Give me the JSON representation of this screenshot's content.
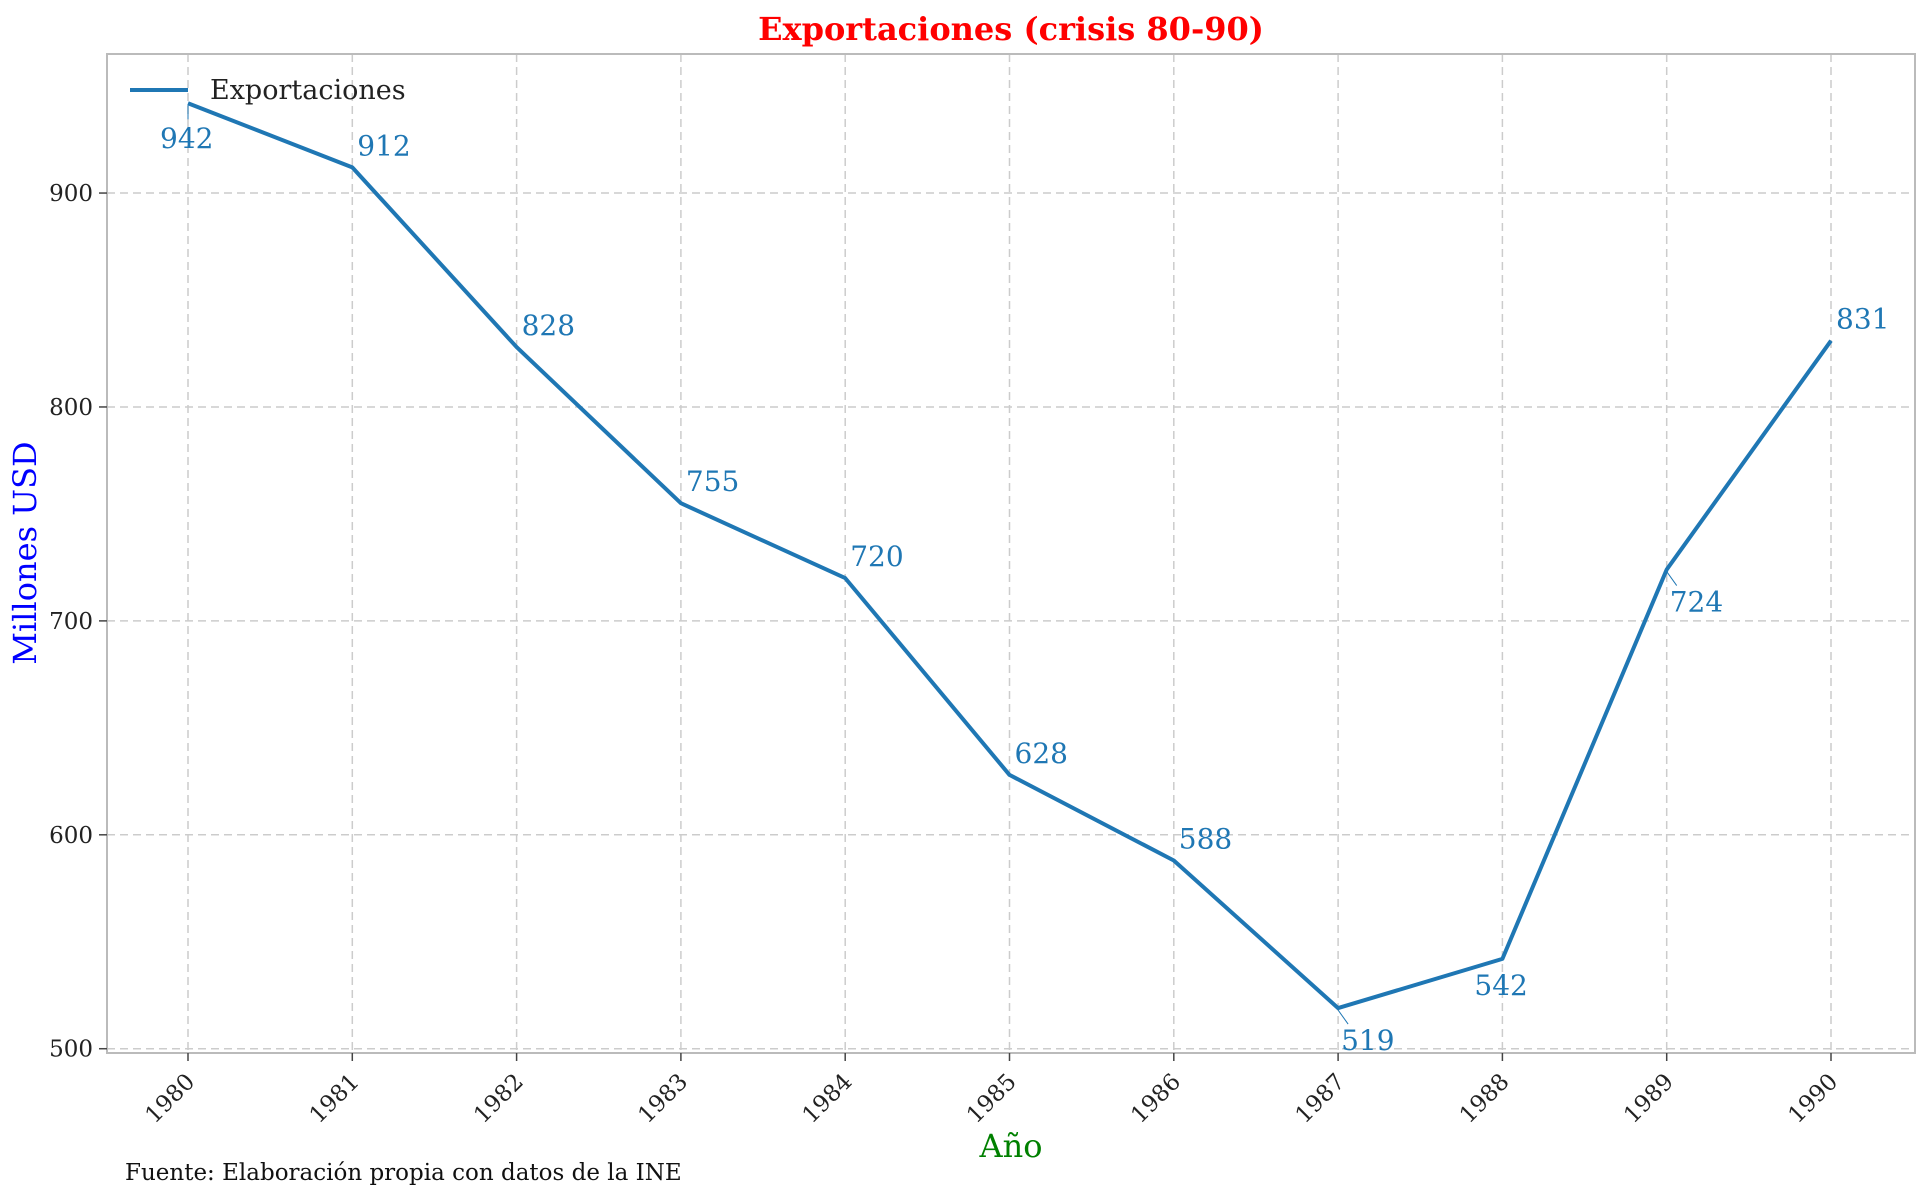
{
  "chart_data": {
    "type": "line",
    "title": "Exportaciones (crisis 80-90)",
    "xlabel": "Año",
    "ylabel": "Millones USD",
    "x": [
      "1980",
      "1981",
      "1982",
      "1983",
      "1984",
      "1985",
      "1986",
      "1987",
      "1988",
      "1989",
      "1990"
    ],
    "series": [
      {
        "name": "Exportaciones",
        "values": [
          942,
          912,
          828,
          755,
          720,
          628,
          588,
          519,
          542,
          724,
          831
        ],
        "data_labels": [
          "942",
          "912",
          "828",
          "755",
          "720",
          "628",
          "588",
          "519",
          "542",
          "724",
          "831"
        ]
      }
    ],
    "ylim": [
      498,
      965
    ],
    "yticks": [
      "500",
      "600",
      "700",
      "800",
      "900"
    ],
    "grid": true,
    "legend_position": "top-left",
    "source_note": "Fuente: Elaboración propia con datos de la INE",
    "colors": {
      "line": "#1f77b4",
      "title": "#ff0000",
      "xlabel": "#008000",
      "ylabel": "#0000ff",
      "grid": "#cccccc",
      "frame": "#bbbbbb"
    }
  }
}
